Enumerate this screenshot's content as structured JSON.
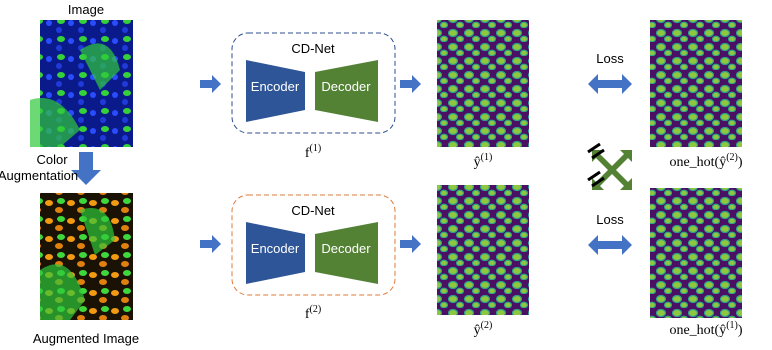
{
  "input": {
    "title": "Image",
    "augmentation": [
      "Color",
      "Augmentation"
    ],
    "augmented_title": "Augmented Image"
  },
  "networks": [
    {
      "name": "CD-Net",
      "encoder": "Encoder",
      "decoder": "Decoder",
      "function": {
        "symbol": "f",
        "superscript": "(1)"
      }
    },
    {
      "name": "CD-Net",
      "encoder": "Encoder",
      "decoder": "Decoder",
      "function": {
        "symbol": "f",
        "superscript": "(2)"
      }
    }
  ],
  "predictions": [
    {
      "symbol": "ŷ",
      "superscript": "(1)"
    },
    {
      "symbol": "ŷ",
      "superscript": "(2)"
    }
  ],
  "losses": [
    "Loss",
    "Loss"
  ],
  "targets": [
    {
      "prefix": "one_hot(",
      "symbol": "ŷ",
      "superscript": "(2)",
      "suffix": ")"
    },
    {
      "prefix": "one_hot(",
      "symbol": "ŷ",
      "superscript": "(1)",
      "suffix": ")"
    }
  ]
}
